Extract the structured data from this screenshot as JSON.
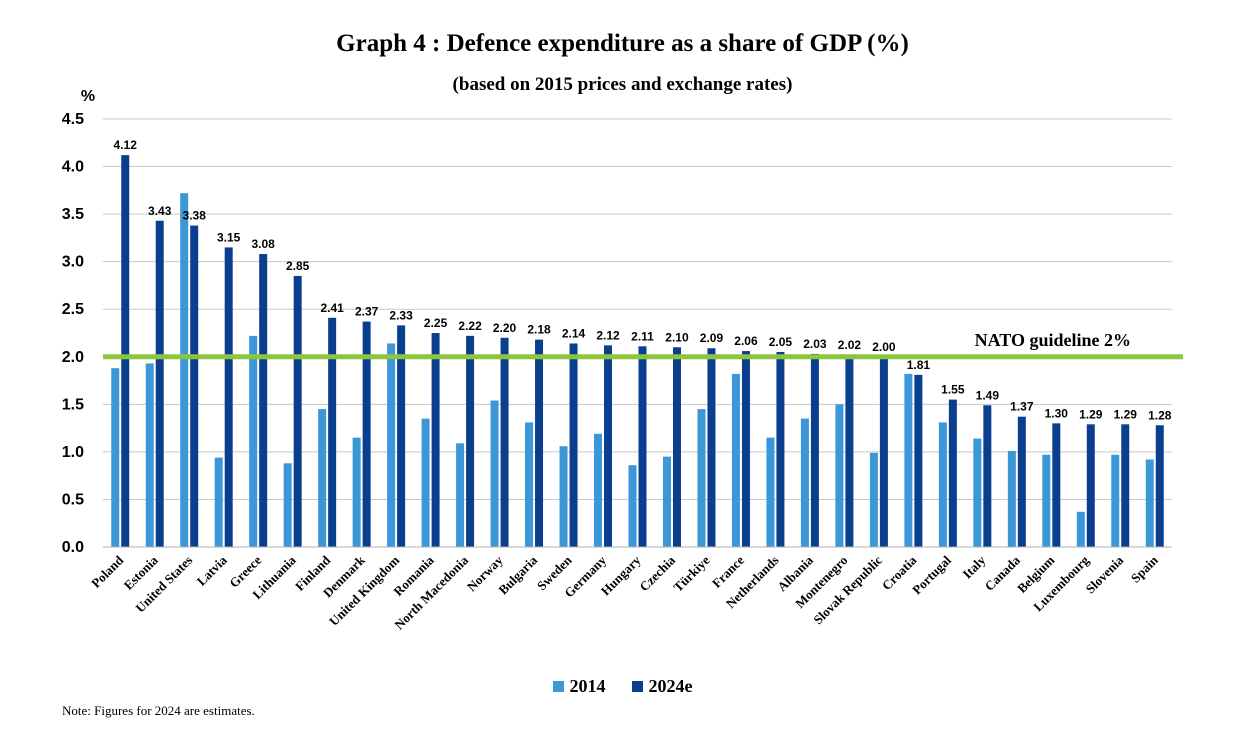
{
  "colors": {
    "s2014": "#3b97d8",
    "s2024": "#0a3f8f",
    "guideline": "#8cc63f",
    "grid": "#c8c8c8"
  },
  "chart_data": {
    "type": "bar",
    "title": "Graph 4 : Defence expenditure as a share of GDP (%)",
    "subtitle": "(based on 2015 prices and exchange rates)",
    "ylabel": "%",
    "ylim": [
      0,
      4.5
    ],
    "yticks": [
      "0.0",
      "0.5",
      "1.0",
      "1.5",
      "2.0",
      "2.5",
      "3.0",
      "3.5",
      "4.0",
      "4.5"
    ],
    "grid": true,
    "legend_position": "bottom",
    "categories": [
      "Poland",
      "Estonia",
      "United States",
      "Latvia",
      "Greece",
      "Lithuania",
      "Finland",
      "Denmark",
      "United Kingdom",
      "Romania",
      "North Macedonia",
      "Norway",
      "Bulgaria",
      "Sweden",
      "Germany",
      "Hungary",
      "Czechia",
      "Türkiye",
      "France",
      "Netherlands",
      "Albania",
      "Montenegro",
      "Slovak Republic",
      "Croatia",
      "Portugal",
      "Italy",
      "Canada",
      "Belgium",
      "Luxembourg",
      "Slovenia",
      "Spain"
    ],
    "series": [
      {
        "name": "2014",
        "values": [
          1.88,
          1.93,
          3.72,
          0.94,
          2.22,
          0.88,
          1.45,
          1.15,
          2.14,
          1.35,
          1.09,
          1.54,
          1.31,
          1.06,
          1.19,
          0.86,
          0.95,
          1.45,
          1.82,
          1.15,
          1.35,
          1.5,
          0.99,
          1.82,
          1.31,
          1.14,
          1.01,
          0.97,
          0.37,
          0.97,
          0.92
        ]
      },
      {
        "name": "2024e",
        "values": [
          4.12,
          3.43,
          3.38,
          3.15,
          3.08,
          2.85,
          2.41,
          2.37,
          2.33,
          2.25,
          2.22,
          2.2,
          2.18,
          2.14,
          2.12,
          2.11,
          2.1,
          2.09,
          2.06,
          2.05,
          2.03,
          2.02,
          2.0,
          1.81,
          1.55,
          1.49,
          1.37,
          1.3,
          1.29,
          1.29,
          1.28
        ]
      }
    ],
    "data_labels_2024e": [
      "4.12",
      "3.43",
      "3.38",
      "3.15",
      "3.08",
      "2.85",
      "2.41",
      "2.37",
      "2.33",
      "2.25",
      "2.22",
      "2.20",
      "2.18",
      "2.14",
      "2.12",
      "2.11",
      "2.10",
      "2.09",
      "2.06",
      "2.05",
      "2.03",
      "2.02",
      "2.00",
      "1.81",
      "1.55",
      "1.49",
      "1.37",
      "1.30",
      "1.29",
      "1.29",
      "1.28"
    ],
    "guideline": {
      "value": 2.0,
      "label": "NATO guideline 2%"
    }
  },
  "legend": {
    "s2014": "2014",
    "s2024": "2024e"
  },
  "note": "Note: Figures for 2024 are estimates."
}
